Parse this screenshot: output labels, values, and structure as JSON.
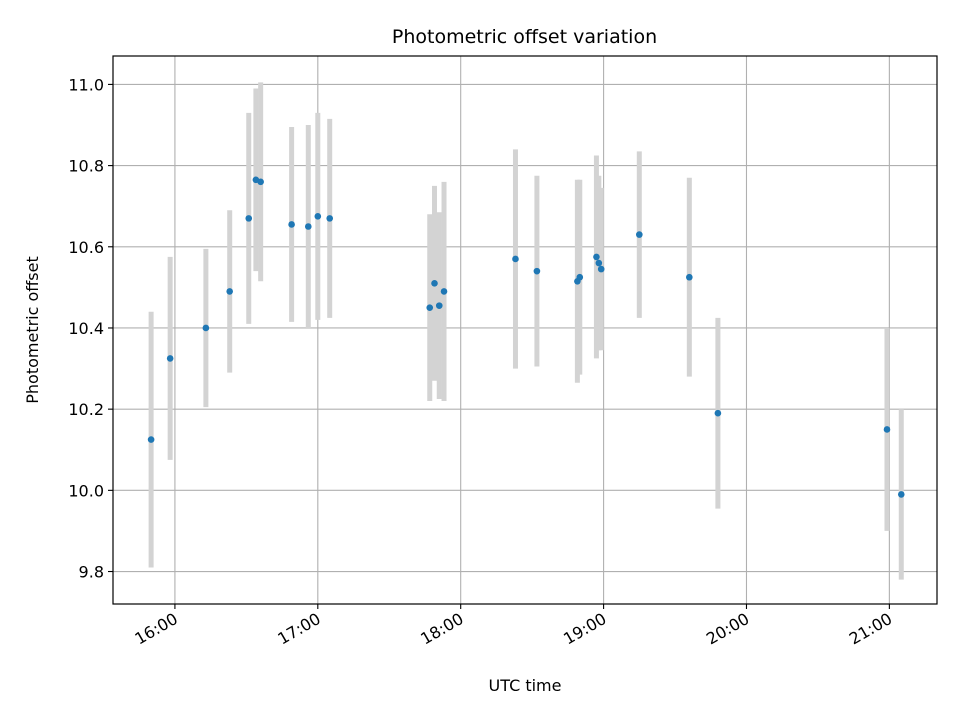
{
  "chart_data": {
    "type": "scatter",
    "title": "Photometric offset variation",
    "xlabel": "UTC time",
    "ylabel": "Photometric offset",
    "x_ticks": [
      "16:00",
      "17:00",
      "18:00",
      "19:00",
      "20:00",
      "21:00"
    ],
    "y_ticks": [
      "9.8",
      "10.0",
      "10.2",
      "10.4",
      "10.6",
      "10.8",
      "11.0"
    ],
    "xlim": [
      "15:34",
      "21:20"
    ],
    "ylim": [
      9.72,
      11.07
    ],
    "grid": true,
    "colors": {
      "point": "#1f77b4",
      "errorbar": "#d3d3d3",
      "grid": "#b0b0b0"
    },
    "series": [
      {
        "x": [
          "15:50",
          "15:58",
          "16:13",
          "16:23",
          "16:31",
          "16:34",
          "16:36",
          "16:49",
          "16:56",
          "17:00",
          "17:05",
          "17:47",
          "17:49",
          "17:51",
          "17:53",
          "18:23",
          "18:32",
          "18:49",
          "18:50",
          "18:57",
          "18:58",
          "18:59",
          "19:15",
          "19:36",
          "19:48",
          "20:59",
          "21:05"
        ],
        "y": [
          10.125,
          10.325,
          10.4,
          10.49,
          10.67,
          10.765,
          10.76,
          10.655,
          10.65,
          10.675,
          10.67,
          10.45,
          10.51,
          10.455,
          10.49,
          10.57,
          10.54,
          10.515,
          10.525,
          10.575,
          10.56,
          10.545,
          10.63,
          10.525,
          10.19,
          10.15,
          9.99
        ],
        "err": [
          0.315,
          0.25,
          0.195,
          0.2,
          0.26,
          0.225,
          0.245,
          0.24,
          0.25,
          0.255,
          0.245,
          0.23,
          0.24,
          0.23,
          0.27,
          0.27,
          0.235,
          0.25,
          0.24,
          0.25,
          0.215,
          0.2,
          0.205,
          0.245,
          0.235,
          0.25,
          0.21
        ]
      }
    ]
  }
}
